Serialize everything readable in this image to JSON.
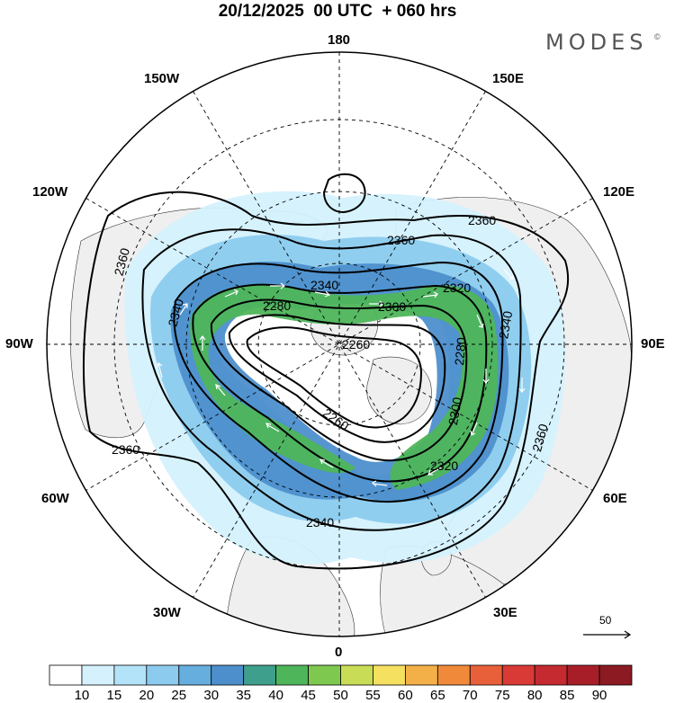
{
  "header": {
    "title": "20/12/2025  00 UTC  + 060 hrs",
    "brand": "MODES",
    "brand_mark": "©"
  },
  "map": {
    "projection": "north-polar-stereographic",
    "longitude_labels": {
      "top": "180",
      "bottom": "0",
      "left": "90W",
      "right": "90E",
      "upper_left_1": "150W",
      "upper_left_2": "120W",
      "upper_right_1": "150E",
      "upper_right_2": "120E",
      "lower_left_1": "60W",
      "lower_left_2": "30W",
      "lower_right_1": "60E",
      "lower_right_2": "30E"
    },
    "contour_labels": [
      "2360",
      "2360",
      "2360",
      "2360",
      "2360",
      "2340",
      "2340",
      "2340",
      "2320",
      "2320",
      "2300",
      "2300",
      "2280",
      "2280",
      "2260",
      "2260",
      "2340"
    ],
    "wind_scale_value": "50"
  },
  "legend": {
    "labels": [
      "10",
      "15",
      "20",
      "25",
      "30",
      "35",
      "40",
      "45",
      "50",
      "55",
      "60",
      "65",
      "70",
      "75",
      "80",
      "85",
      "90"
    ],
    "colors": [
      "#ffffff",
      "#d4f1fd",
      "#b3e3f8",
      "#8ccbee",
      "#66aede",
      "#4d8fcc",
      "#3e9f8c",
      "#4eb55a",
      "#7ec850",
      "#c8dd55",
      "#f5e060",
      "#f4b048",
      "#f08a3a",
      "#e8603a",
      "#d93a35",
      "#c42a30",
      "#a81e28",
      "#8b1a22"
    ]
  }
}
